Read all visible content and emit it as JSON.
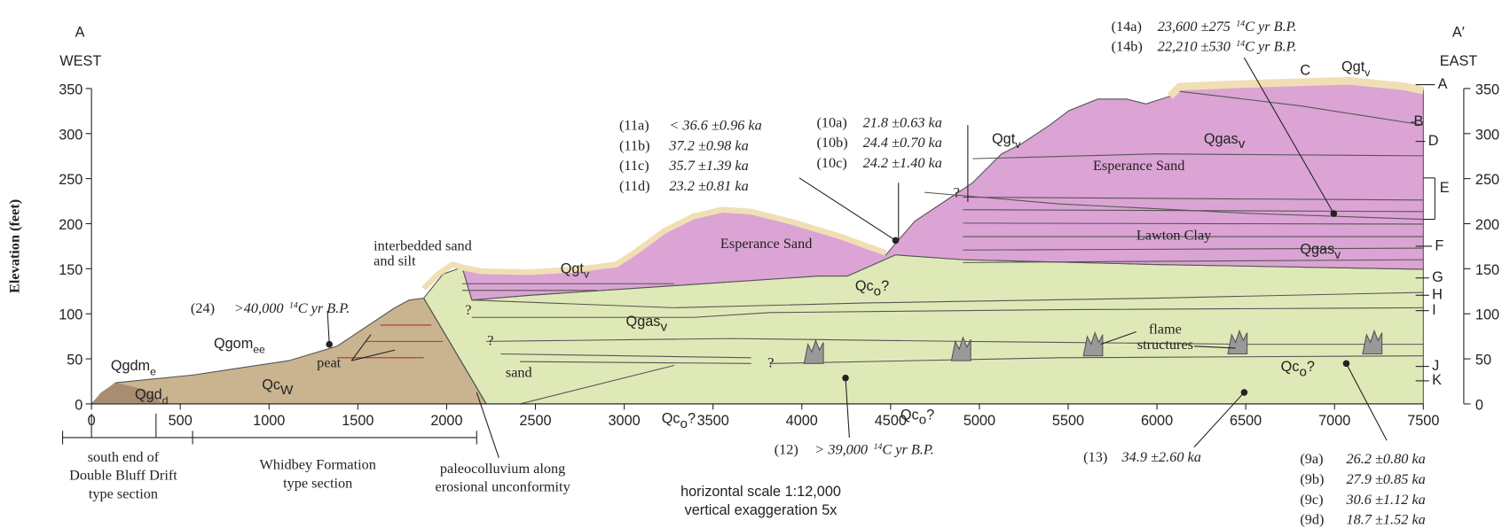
{
  "header": {
    "left": "A",
    "right": "A′",
    "west": "WEST",
    "east": "EAST"
  },
  "axes": {
    "y_title": "Elevation (feet)",
    "xlim": [
      0,
      7500
    ],
    "xticks": [
      0,
      500,
      1000,
      1500,
      2000,
      2500,
      3000,
      3500,
      4000,
      4500,
      5000,
      5500,
      6000,
      6500,
      7000,
      7500
    ],
    "ylim": [
      0,
      350
    ],
    "yticks": [
      0,
      50,
      100,
      150,
      200,
      250,
      300,
      350
    ]
  },
  "horizons": [
    "A",
    "B",
    "C",
    "D",
    "E",
    "F",
    "G",
    "H",
    "I",
    "J",
    "K"
  ],
  "units": [
    {
      "text": "Qgdm",
      "sub": "e"
    },
    {
      "text": "Qgd",
      "sub": "d"
    },
    {
      "text": "Qgom",
      "sub": "ee"
    },
    {
      "text": "Qc",
      "sub": "W"
    },
    {
      "text": "Qgt",
      "sub": "v"
    },
    {
      "text": "Qgt",
      "sub": "v"
    },
    {
      "text": "Qgt",
      "sub": "v"
    },
    {
      "text": "Qgas",
      "sub": "v"
    },
    {
      "text": "Qgas",
      "sub": "v"
    },
    {
      "text": "Qgas",
      "sub": "v"
    },
    {
      "text": "Qc",
      "sub": "o",
      "suffix": "?"
    },
    {
      "text": "Qc",
      "sub": "o",
      "suffix": "?"
    },
    {
      "text": "Qc",
      "sub": "o",
      "suffix": "?"
    },
    {
      "text": "Qc",
      "sub": "o",
      "suffix": "?"
    }
  ],
  "features": [
    [
      "interbedded sand",
      "and silt"
    ],
    [
      "peat"
    ],
    [
      "sand"
    ],
    [
      "Esperance Sand"
    ],
    [
      "Esperance Sand"
    ],
    [
      "Lawton Clay"
    ],
    [
      "flame",
      "structures"
    ]
  ],
  "question_marks": [
    "?",
    "?",
    "?",
    "?"
  ],
  "dates": [
    [
      {
        "id": "(24)",
        "value": ">40,000",
        "sup": "14",
        "unit": "C yr B.P."
      }
    ],
    [
      {
        "id": "(11a)",
        "value": "< 36.6 ±0.96 ka"
      },
      {
        "id": "(11b)",
        "value": "37.2 ±0.98 ka"
      },
      {
        "id": "(11c)",
        "value": "35.7 ±1.39 ka"
      },
      {
        "id": "(11d)",
        "value": "23.2 ±0.81 ka"
      }
    ],
    [
      {
        "id": "(10a)",
        "value": "21.8 ±0.63 ka"
      },
      {
        "id": "(10b)",
        "value": "24.4 ±0.70 ka"
      },
      {
        "id": "(10c)",
        "value": "24.2 ±1.40 ka"
      }
    ],
    [
      {
        "id": "(14a)",
        "value": "23,600 ±275",
        "sup": "14",
        "unit": "C yr B.P."
      },
      {
        "id": "(14b)",
        "value": "22,210 ±530",
        "sup": "14",
        "unit": "C yr B.P."
      }
    ],
    [
      {
        "id": "(12)",
        "value": "> 39,000",
        "sup": "14",
        "unit": "C yr B.P."
      }
    ],
    [
      {
        "id": "(13)",
        "value": "34.9 ±2.60 ka"
      }
    ],
    [
      {
        "id": "(9a)",
        "value": "26.2 ±0.80 ka"
      },
      {
        "id": "(9b)",
        "value": "27.9 ±0.85 ka"
      },
      {
        "id": "(9c)",
        "value": "30.6 ±1.12 ka"
      },
      {
        "id": "(9d)",
        "value": "18.7 ±1.52 ka"
      }
    ]
  ],
  "notes": [
    [
      "south end of",
      "Double Bluff Drift",
      "type section"
    ],
    [
      "Whidbey Formation",
      "type section"
    ],
    [
      "paleocolluvium along",
      "erosional unconformity"
    ],
    [
      "horizontal scale 1:12,000",
      "vertical exaggeration 5x"
    ]
  ]
}
